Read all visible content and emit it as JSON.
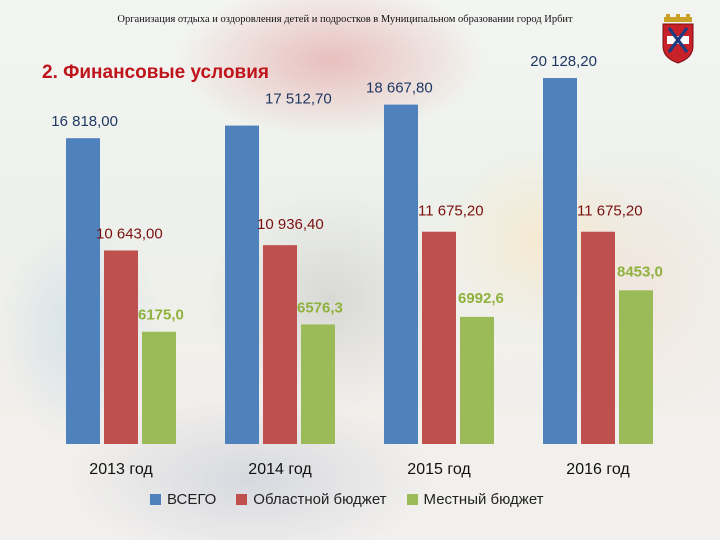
{
  "header": {
    "org_title": "Организация отдыха и оздоровления детей и подростков в Муниципальном образовании город Ирбит"
  },
  "slide": {
    "title": "2. Финансовые условия"
  },
  "emblem": {
    "icon": "coat-of-arms-icon"
  },
  "chart_data": {
    "type": "bar",
    "categories": [
      "2013 год",
      "2014 год",
      "2015 год",
      "2016 год"
    ],
    "series": [
      {
        "name": "ВСЕГО",
        "color": "#4f81bd",
        "labelColor": "#1f3864",
        "values": [
          16818.0,
          17512.7,
          18667.8,
          20128.2
        ],
        "labels": [
          "16 818,00",
          "17 512,70",
          "18 667,80",
          "20 128,20"
        ]
      },
      {
        "name": "Областной бюджет",
        "color": "#c0504d",
        "labelColor": "#7a1010",
        "values": [
          10643.0,
          10936.4,
          11675.2,
          11675.2
        ],
        "labels": [
          "10 643,00",
          "10 936,40",
          "11 675,20",
          "11 675,20"
        ]
      },
      {
        "name": "Местный бюджет",
        "color": "#9bbb59",
        "labelColor": "#8fb13e",
        "values": [
          6175.0,
          6576.3,
          6992.6,
          8453.0
        ],
        "labels": [
          "6175,0",
          "6576,3",
          "6992,6",
          "8453,0"
        ]
      }
    ],
    "ylim": [
      0,
      22000
    ],
    "grid": false,
    "legend_position": "bottom"
  }
}
